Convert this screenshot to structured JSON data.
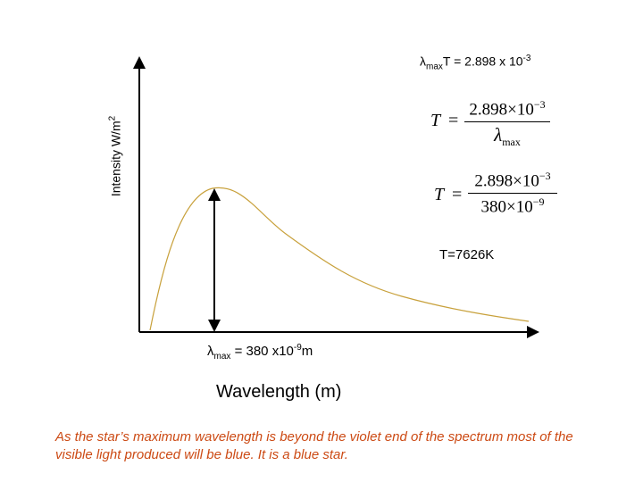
{
  "wien_law": {
    "lambda": "λ",
    "sub": "max",
    "rest": "T = 2.898 x 10",
    "exp": "-3"
  },
  "y_axis": {
    "label": "Intensity W/m",
    "exp": "2"
  },
  "x_axis": {
    "label": "Wavelength (m)"
  },
  "equation_general": {
    "lhs": "T",
    "equals": "=",
    "numerator": "2.898×10",
    "numerator_exp": "−3",
    "denominator_symbol": "λ",
    "denominator_sub": "max"
  },
  "equation_substituted": {
    "lhs": "T",
    "equals": "=",
    "numerator": "2.898×10",
    "numerator_exp": "−3",
    "denominator": "380×10",
    "denominator_exp": "−9"
  },
  "result": {
    "text": "T=7626K"
  },
  "lambda_max": {
    "symbol": "λ",
    "sub": "max",
    "value": " = 380 x10",
    "exp": "-9",
    "unit": "m"
  },
  "conclusion": {
    "text": "As the star’s maximum wavelength is beyond the violet end of the spectrum most of the visible light produced will be blue. It is a blue star."
  },
  "colors": {
    "curve": "#c8a13c",
    "axes": "#000000",
    "conclusion_text": "#cc4a14"
  }
}
